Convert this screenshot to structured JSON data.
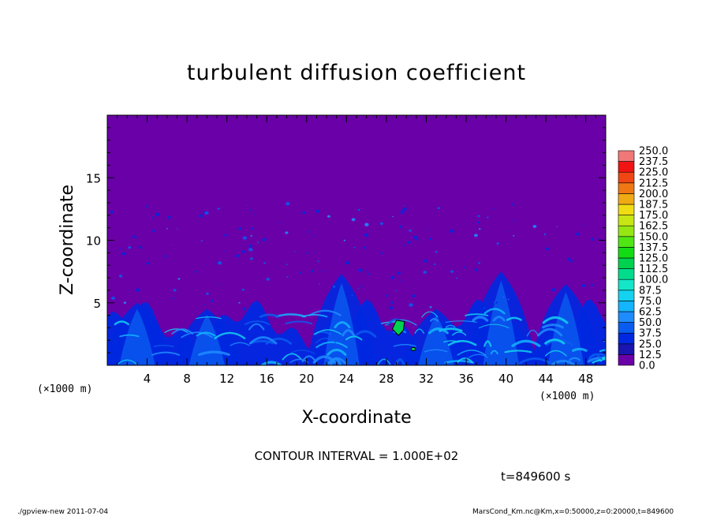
{
  "chart_data": {
    "type": "heatmap",
    "title": "turbulent diffusion coefficient",
    "xlabel": "X-coordinate",
    "ylabel": "Z-coordinate",
    "x_unit": "(×1000 m)",
    "y_unit": "(×1000 m)",
    "xlim": [
      0,
      50
    ],
    "ylim": [
      0,
      20
    ],
    "x_ticks": [
      4,
      8,
      12,
      16,
      20,
      24,
      28,
      32,
      36,
      40,
      44,
      48
    ],
    "y_ticks": [
      5,
      10,
      15
    ],
    "colorbar": {
      "levels": [
        "0.0",
        "12.5",
        "25.0",
        "37.5",
        "50.0",
        "62.5",
        "75.0",
        "87.5",
        "100.0",
        "112.5",
        "125.0",
        "137.5",
        "150.0",
        "162.5",
        "175.0",
        "187.5",
        "200.0",
        "212.5",
        "225.0",
        "237.5",
        "250.0"
      ],
      "colors": [
        "#6a00a8",
        "#1a14b0",
        "#0028e0",
        "#0a5cf0",
        "#1e8cff",
        "#14b4ff",
        "#14d2f0",
        "#14e6c8",
        "#00dc8c",
        "#00d250",
        "#14dc14",
        "#50e614",
        "#96e614",
        "#c8e614",
        "#f0dc14",
        "#f0aa14",
        "#f07814",
        "#f04614",
        "#f01414",
        "#f07878"
      ]
    },
    "contour_interval": "CONTOUR INTERVAL = 1.000E+02",
    "time_label": "t=849600 s",
    "footer_left": "./gpview-new   2011-07-04",
    "footer_right": "MarsCond_Km.nc@Km,x=0:50000,z=0:20000,t=849600",
    "background_color": "#6a00a8",
    "plumes_x": [
      3,
      10,
      23.5,
      33,
      39.5,
      46
    ],
    "plumes_height": [
      5,
      4.5,
      7.3,
      4.5,
      7.5,
      6.5
    ]
  }
}
